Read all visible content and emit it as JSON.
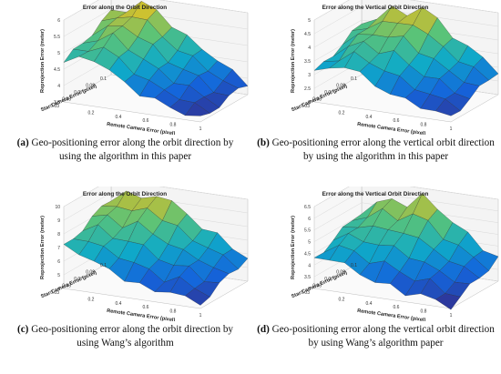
{
  "chart_data": [
    {
      "type": "surface3d",
      "title": "Error along the Orbit Direction",
      "zlabel": "Reprojection Error (meter)",
      "xlabel": "Remote Camera Error (pixel)",
      "ylabel": "Star Camera Error (pixel)",
      "zticks": [
        "6",
        "5.5",
        "5",
        "4.5",
        "4",
        "3.5"
      ],
      "xticks": [
        "0.2",
        "0.4",
        "0.6",
        "0.8",
        "1"
      ],
      "yticks": [
        "0.1",
        "0.09",
        "0.07",
        "0.05",
        "0.03"
      ],
      "zlim": [
        3.3,
        6.2
      ],
      "z_back": [
        5.5,
        5.7,
        6.0,
        5.8,
        5.4,
        5.0,
        4.7,
        4.4,
        4.0,
        3.7
      ],
      "z_front": [
        4.7,
        4.9,
        5.0,
        4.6,
        4.3,
        4.0,
        3.8,
        3.7,
        3.5,
        3.4
      ],
      "caption_tag": "(a)",
      "caption_text": " Geo-positioning error along the orbit direction by using the algorithm in this paper"
    },
    {
      "type": "surface3d",
      "title": "Error along the Vertical Orbit Direction",
      "zlabel": "Reprojection Error (meter)",
      "xlabel": "Remote Camera Error (pixel)",
      "ylabel": "Star Camera Error (pixel)",
      "zticks": [
        "5",
        "4.5",
        "4",
        "3.5",
        "3",
        "2.5",
        "2"
      ],
      "xticks": [
        "0.2",
        "0.4",
        "0.6",
        "0.8",
        "1"
      ],
      "yticks": [
        "0.1",
        "0.09",
        "0.07",
        "0.05",
        "0.03"
      ],
      "zlim": [
        1.8,
        5.2
      ],
      "z_back": [
        3.9,
        4.3,
        4.7,
        4.6,
        5.0,
        4.5,
        4.0,
        3.6,
        3.2,
        2.8
      ],
      "z_front": [
        3.0,
        3.3,
        3.5,
        3.2,
        2.9,
        2.6,
        2.4,
        2.3,
        2.1,
        2.0
      ],
      "caption_tag": "(b)",
      "caption_text": " Geo-positioning error along the vertical orbit direction by using the algorithm in this paper"
    },
    {
      "type": "surface3d",
      "title": "Error along the Orbit Direction",
      "zlabel": "Reprojection Error (meter)",
      "xlabel": "Remote Camera Error (pixel)",
      "ylabel": "Star Camera Error (pixel)",
      "zticks": [
        "10",
        "9",
        "8",
        "7",
        "6",
        "5",
        "4"
      ],
      "xticks": [
        "0.2",
        "0.4",
        "0.6",
        "0.8",
        "1"
      ],
      "yticks": [
        "0.1",
        "0.09",
        "0.07",
        "0.05",
        "0.03"
      ],
      "zlim": [
        3.6,
        10.4
      ],
      "z_back": [
        8.8,
        9.6,
        9.0,
        9.8,
        9.2,
        8.4,
        7.6,
        7.0,
        6.2,
        5.6
      ],
      "z_front": [
        7.0,
        6.8,
        6.2,
        5.6,
        5.2,
        4.8,
        4.4,
        4.8,
        4.2,
        4.0
      ],
      "caption_tag": "(c)",
      "caption_text": " Geo-positioning error along the orbit direction by using Wang’s algorithm"
    },
    {
      "type": "surface3d",
      "title": "Error along the Vertical Orbit Direction",
      "zlabel": "Reprojection Error (meter)",
      "xlabel": "Remote Camera Error (pixel)",
      "ylabel": "Star Camera Error (pixel)",
      "zticks": [
        "6.5",
        "6",
        "5.5",
        "5",
        "4.5",
        "4",
        "3.5",
        "3"
      ],
      "xticks": [
        "0.2",
        "0.4",
        "0.6",
        "0.8",
        "1"
      ],
      "yticks": [
        "0.1",
        "0.09",
        "0.07",
        "0.05",
        "0.03"
      ],
      "zlim": [
        2.8,
        6.7
      ],
      "z_back": [
        5.2,
        5.6,
        6.0,
        5.8,
        6.3,
        5.9,
        5.3,
        4.8,
        4.3,
        3.9
      ],
      "z_front": [
        4.2,
        4.4,
        4.1,
        3.8,
        3.6,
        3.4,
        3.2,
        3.3,
        3.0,
        2.9
      ],
      "caption_tag": "(d)",
      "caption_text": " Geo-positioning error along the vertical orbit direction by using Wang’s algorithm paper"
    }
  ]
}
